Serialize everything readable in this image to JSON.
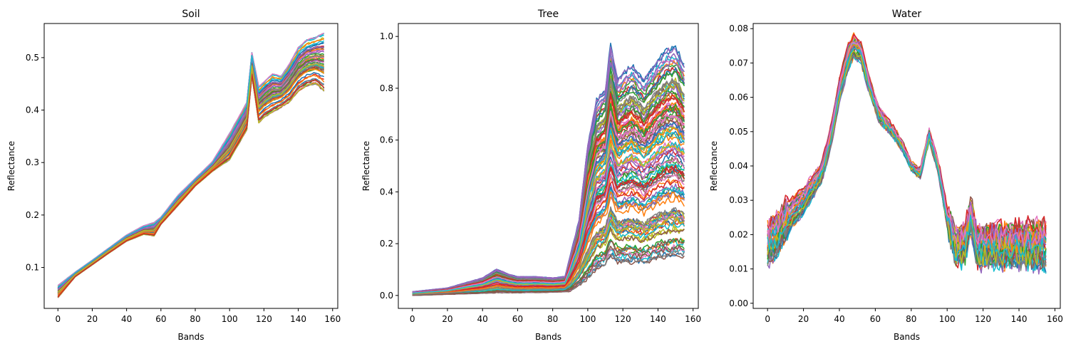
{
  "chart_data": [
    {
      "type": "line",
      "title": "Soil",
      "xlabel": "Bands",
      "ylabel": "Reflectance",
      "xlim": [
        -8,
        163
      ],
      "ylim": [
        0.022,
        0.565
      ],
      "xticks": [
        0,
        20,
        40,
        60,
        80,
        100,
        120,
        140,
        160
      ],
      "yticks": [
        0.1,
        0.2,
        0.3,
        0.4,
        0.5
      ],
      "ytick_labels": [
        "0.1",
        "0.2",
        "0.3",
        "0.4",
        "0.5"
      ],
      "series_count": 60,
      "n_bands": 156,
      "envelope_low": [
        [
          0,
          0.042
        ],
        [
          10,
          0.082
        ],
        [
          20,
          0.105
        ],
        [
          30,
          0.128
        ],
        [
          40,
          0.15
        ],
        [
          50,
          0.163
        ],
        [
          56,
          0.16
        ],
        [
          60,
          0.182
        ],
        [
          70,
          0.218
        ],
        [
          80,
          0.255
        ],
        [
          90,
          0.283
        ],
        [
          100,
          0.305
        ],
        [
          110,
          0.362
        ],
        [
          113,
          0.465
        ],
        [
          117,
          0.375
        ],
        [
          120,
          0.385
        ],
        [
          125,
          0.395
        ],
        [
          130,
          0.405
        ],
        [
          135,
          0.415
        ],
        [
          140,
          0.435
        ],
        [
          145,
          0.445
        ],
        [
          150,
          0.45
        ],
        [
          155,
          0.435
        ]
      ],
      "envelope_high": [
        [
          0,
          0.066
        ],
        [
          10,
          0.091
        ],
        [
          20,
          0.114
        ],
        [
          30,
          0.138
        ],
        [
          40,
          0.162
        ],
        [
          50,
          0.18
        ],
        [
          56,
          0.186
        ],
        [
          60,
          0.196
        ],
        [
          70,
          0.238
        ],
        [
          80,
          0.27
        ],
        [
          90,
          0.302
        ],
        [
          100,
          0.356
        ],
        [
          110,
          0.415
        ],
        [
          113,
          0.51
        ],
        [
          117,
          0.445
        ],
        [
          120,
          0.455
        ],
        [
          125,
          0.47
        ],
        [
          130,
          0.465
        ],
        [
          135,
          0.49
        ],
        [
          140,
          0.52
        ],
        [
          145,
          0.535
        ],
        [
          150,
          0.54
        ],
        [
          155,
          0.548
        ]
      ]
    },
    {
      "type": "line",
      "title": "Tree",
      "xlabel": "Bands",
      "ylabel": "Reflectance",
      "xlim": [
        -8,
        163
      ],
      "ylim": [
        -0.05,
        1.05
      ],
      "xticks": [
        0,
        20,
        40,
        60,
        80,
        100,
        120,
        140,
        160
      ],
      "yticks": [
        0.0,
        0.2,
        0.4,
        0.6,
        0.8,
        1.0
      ],
      "ytick_labels": [
        "0.0",
        "0.2",
        "0.4",
        "0.6",
        "0.8",
        "1.0"
      ],
      "series_count": 120,
      "n_bands": 156,
      "envelope_low": [
        [
          0,
          0.0
        ],
        [
          20,
          0.004
        ],
        [
          40,
          0.008
        ],
        [
          48,
          0.01
        ],
        [
          60,
          0.01
        ],
        [
          80,
          0.012
        ],
        [
          90,
          0.015
        ],
        [
          100,
          0.06
        ],
        [
          105,
          0.1
        ],
        [
          110,
          0.115
        ],
        [
          113,
          0.15
        ],
        [
          117,
          0.125
        ],
        [
          125,
          0.125
        ],
        [
          132,
          0.12
        ],
        [
          140,
          0.14
        ],
        [
          150,
          0.15
        ],
        [
          155,
          0.15
        ]
      ],
      "envelope_high": [
        [
          0,
          0.015
        ],
        [
          20,
          0.03
        ],
        [
          40,
          0.07
        ],
        [
          48,
          0.105
        ],
        [
          55,
          0.085
        ],
        [
          60,
          0.075
        ],
        [
          70,
          0.075
        ],
        [
          80,
          0.07
        ],
        [
          87,
          0.075
        ],
        [
          95,
          0.3
        ],
        [
          100,
          0.6
        ],
        [
          105,
          0.78
        ],
        [
          110,
          0.82
        ],
        [
          113,
          1.0
        ],
        [
          117,
          0.86
        ],
        [
          125,
          0.92
        ],
        [
          132,
          0.86
        ],
        [
          140,
          0.94
        ],
        [
          145,
          0.98
        ],
        [
          150,
          0.99
        ],
        [
          155,
          0.92
        ]
      ]
    },
    {
      "type": "line",
      "title": "Water",
      "xlabel": "Bands",
      "ylabel": "Reflectance",
      "xlim": [
        -8,
        163
      ],
      "ylim": [
        -0.0015,
        0.0815
      ],
      "xticks": [
        0,
        20,
        40,
        60,
        80,
        100,
        120,
        140,
        160
      ],
      "yticks": [
        0.0,
        0.01,
        0.02,
        0.03,
        0.04,
        0.05,
        0.06,
        0.07,
        0.08
      ],
      "ytick_labels": [
        "0.00",
        "0.01",
        "0.02",
        "0.03",
        "0.04",
        "0.05",
        "0.06",
        "0.07",
        "0.08"
      ],
      "series_count": 40,
      "n_bands": 156,
      "center": [
        [
          0,
          0.018
        ],
        [
          5,
          0.02
        ],
        [
          10,
          0.024
        ],
        [
          20,
          0.03
        ],
        [
          30,
          0.038
        ],
        [
          35,
          0.048
        ],
        [
          40,
          0.062
        ],
        [
          45,
          0.072
        ],
        [
          48,
          0.075
        ],
        [
          52,
          0.073
        ],
        [
          57,
          0.063
        ],
        [
          62,
          0.055
        ],
        [
          70,
          0.05
        ],
        [
          75,
          0.046
        ],
        [
          80,
          0.04
        ],
        [
          85,
          0.038
        ],
        [
          90,
          0.049
        ],
        [
          95,
          0.04
        ],
        [
          100,
          0.025
        ],
        [
          105,
          0.016
        ],
        [
          110,
          0.017
        ],
        [
          113,
          0.026
        ],
        [
          117,
          0.016
        ],
        [
          125,
          0.017
        ],
        [
          135,
          0.017
        ],
        [
          145,
          0.017
        ],
        [
          155,
          0.017
        ]
      ],
      "spread": [
        [
          0,
          0.006
        ],
        [
          30,
          0.003
        ],
        [
          45,
          0.004
        ],
        [
          60,
          0.002
        ],
        [
          80,
          0.001
        ],
        [
          95,
          0.002
        ],
        [
          105,
          0.004
        ],
        [
          155,
          0.006
        ]
      ]
    }
  ]
}
